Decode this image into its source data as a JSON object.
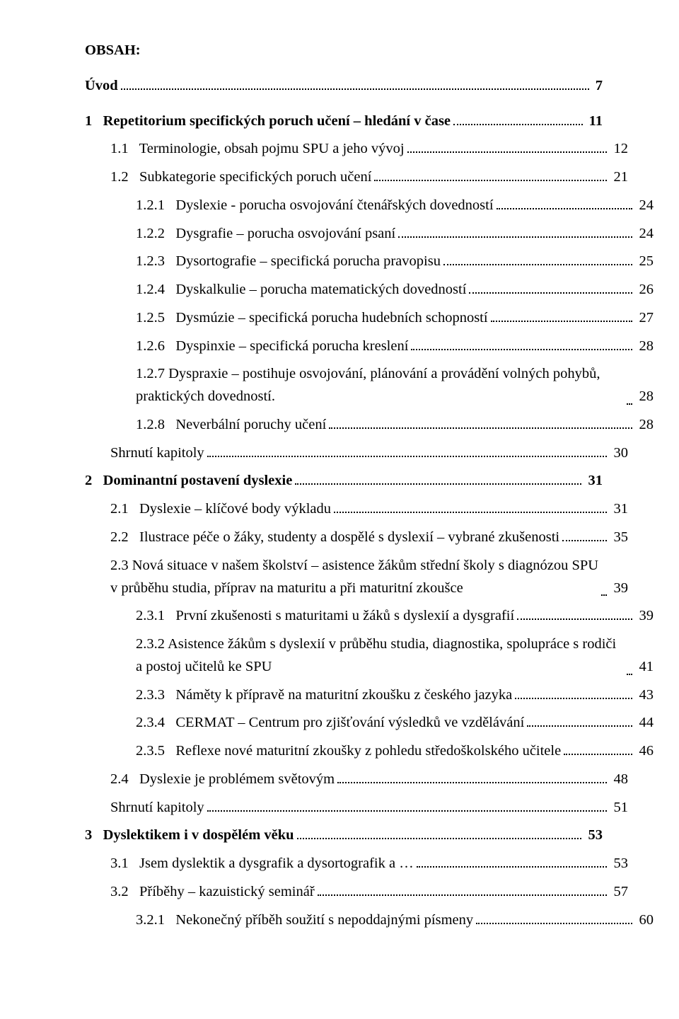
{
  "heading": "OBSAH:",
  "entries": [
    {
      "indent": 0,
      "bold": true,
      "label": "Úvod",
      "page": "7",
      "gap": "L"
    },
    {
      "indent": 0,
      "bold": true,
      "label": "1   Repetitorium specifických poruch učení – hledání v čase",
      "page": "11",
      "gap": "L"
    },
    {
      "indent": 1,
      "bold": false,
      "label": "1.1   Terminologie, obsah pojmu SPU a jeho vývoj",
      "page": "12",
      "gap": "S"
    },
    {
      "indent": 1,
      "bold": false,
      "label": "1.2   Subkategorie specifických poruch učení",
      "page": "21",
      "gap": "S"
    },
    {
      "indent": 2,
      "bold": false,
      "label": "1.2.1   Dyslexie - porucha osvojování čtenářských dovedností",
      "page": "24",
      "gap": "S"
    },
    {
      "indent": 2,
      "bold": false,
      "label": "1.2.2   Dysgrafie – porucha osvojování psaní",
      "page": "24",
      "gap": "S"
    },
    {
      "indent": 2,
      "bold": false,
      "label": "1.2.3   Dysortografie – specifická porucha pravopisu",
      "page": "25",
      "gap": "S"
    },
    {
      "indent": 2,
      "bold": false,
      "label": "1.2.4   Dyskalkulie – porucha matematických dovedností",
      "page": "26",
      "gap": "S"
    },
    {
      "indent": 2,
      "bold": false,
      "label": "1.2.5   Dysmúzie – specifická porucha hudebních schopností",
      "page": "27",
      "gap": "S"
    },
    {
      "indent": 2,
      "bold": false,
      "label": "1.2.6   Dyspinxie – specifická porucha kreslení",
      "page": "28",
      "gap": "S"
    },
    {
      "indent": 2,
      "bold": false,
      "label": "1.2.7   Dyspraxie – postihuje osvojování, plánování a provádění volných pohybů, praktických dovedností.",
      "page": "28",
      "gap": "S",
      "wrap": true
    },
    {
      "indent": 2,
      "bold": false,
      "label": "1.2.8   Neverbální poruchy učení",
      "page": "28",
      "gap": "S"
    },
    {
      "indent": 1,
      "bold": false,
      "label": "Shrnutí kapitoly",
      "page": "30",
      "gap": "S"
    },
    {
      "indent": 0,
      "bold": true,
      "label": "2   Dominantní postavení dyslexie",
      "page": "31",
      "gap": "S"
    },
    {
      "indent": 1,
      "bold": false,
      "label": "2.1   Dyslexie – klíčové body výkladu",
      "page": "31",
      "gap": "S"
    },
    {
      "indent": 1,
      "bold": false,
      "label": "2.2   Ilustrace péče o žáky, studenty a dospělé s dyslexií – vybrané zkušenosti",
      "page": "35",
      "gap": "S"
    },
    {
      "indent": 1,
      "bold": false,
      "label": "2.3   Nová situace v našem školství – asistence žákům střední školy s diagnózou SPU v průběhu studia, příprav na maturitu a při maturitní zkoušce",
      "page": "39",
      "gap": "S",
      "wrap": true
    },
    {
      "indent": 2,
      "bold": false,
      "label": "2.3.1   První zkušenosti s maturitami u žáků s dyslexií a dysgrafií",
      "page": "39",
      "gap": "S"
    },
    {
      "indent": 2,
      "bold": false,
      "label": "2.3.2   Asistence žákům s dyslexií v průběhu studia, diagnostika, spolupráce s rodiči a postoj učitelů ke SPU",
      "page": "41",
      "gap": "S",
      "wrap": true
    },
    {
      "indent": 2,
      "bold": false,
      "label": "2.3.3   Náměty k přípravě na maturitní zkoušku z českého jazyka",
      "page": "43",
      "gap": "S"
    },
    {
      "indent": 2,
      "bold": false,
      "label": "2.3.4   CERMAT – Centrum pro zjišťování výsledků ve vzdělávání",
      "page": "44",
      "gap": "S"
    },
    {
      "indent": 2,
      "bold": false,
      "label": "2.3.5   Reflexe nové maturitní zkoušky z pohledu středoškolského učitele",
      "page": "46",
      "gap": "S"
    },
    {
      "indent": 1,
      "bold": false,
      "label": "2.4   Dyslexie je problémem světovým",
      "page": "48",
      "gap": "S"
    },
    {
      "indent": 1,
      "bold": false,
      "label": "Shrnutí kapitoly",
      "page": "51",
      "gap": "S"
    },
    {
      "indent": 0,
      "bold": true,
      "label": "3   Dyslektikem i v dospělém věku",
      "page": "53",
      "gap": "S"
    },
    {
      "indent": 1,
      "bold": false,
      "label": "3.1   Jsem dyslektik a dysgrafik a dysortografik a …",
      "page": "53",
      "gap": "S"
    },
    {
      "indent": 1,
      "bold": false,
      "label": "3.2   Příběhy – kazuistický seminář",
      "page": "57",
      "gap": "S"
    },
    {
      "indent": 2,
      "bold": false,
      "label": "3.2.1   Nekonečný příběh soužití s nepoddajnými písmeny",
      "page": "60",
      "gap": "S"
    }
  ]
}
